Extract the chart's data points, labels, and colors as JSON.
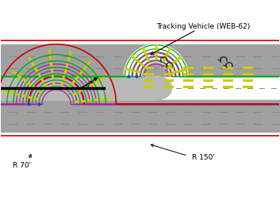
{
  "white": "#ffffff",
  "light_gray": "#b8b8b8",
  "med_gray": "#a0a0a0",
  "dark_gray": "#707070",
  "dash_gray": "#888888",
  "red_color": "#cc0000",
  "green_color": "#00aa00",
  "purple_color": "#cc00cc",
  "yellow_color": "#cccc00",
  "black": "#000000",
  "blue_dot": "#0055cc",
  "title_text": "Tracking Vehicle (WEB-62)",
  "label_r70": "R 70'",
  "label_r150": "R 150'",
  "figsize": [
    3.53,
    2.52
  ],
  "dpi": 100
}
